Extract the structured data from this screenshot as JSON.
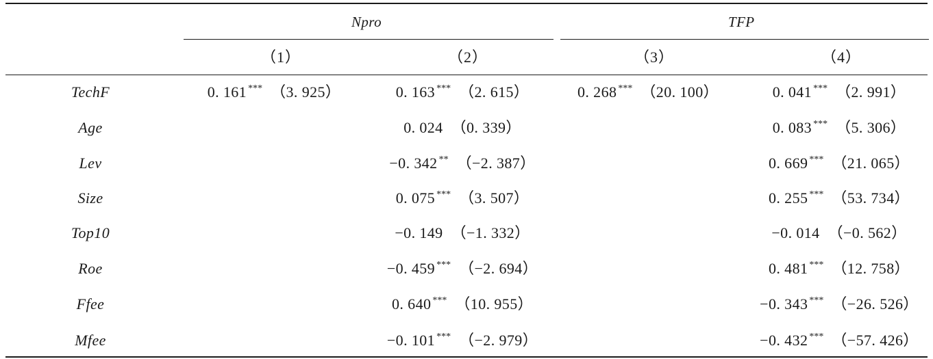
{
  "header": {
    "group_npro": "Npro",
    "group_tfp": "TFP",
    "columns": [
      "（1）",
      "（2）",
      "（3）",
      "（4）"
    ]
  },
  "rows": [
    {
      "variable": "TechF",
      "c1": {
        "coef": "0. 161",
        "stars": "***",
        "t": "（3. 925）"
      },
      "c2": {
        "coef": "0. 163",
        "stars": "***",
        "t": "（2. 615）"
      },
      "c3": {
        "coef": "0. 268",
        "stars": "***",
        "t": "（20. 100）"
      },
      "c4": {
        "coef": "0. 041",
        "stars": "***",
        "t": "（2. 991）"
      }
    },
    {
      "variable": "Age",
      "c1": {
        "coef": "",
        "stars": "",
        "t": ""
      },
      "c2": {
        "coef": "0. 024",
        "stars": "",
        "t": "（0. 339）"
      },
      "c3": {
        "coef": "",
        "stars": "",
        "t": ""
      },
      "c4": {
        "coef": "0. 083",
        "stars": "***",
        "t": "（5. 306）"
      }
    },
    {
      "variable": "Lev",
      "c1": {
        "coef": "",
        "stars": "",
        "t": ""
      },
      "c2": {
        "coef": "−0. 342",
        "stars": "**",
        "t": "（−2. 387）"
      },
      "c3": {
        "coef": "",
        "stars": "",
        "t": ""
      },
      "c4": {
        "coef": "0. 669",
        "stars": "***",
        "t": "（21. 065）"
      }
    },
    {
      "variable": "Size",
      "c1": {
        "coef": "",
        "stars": "",
        "t": ""
      },
      "c2": {
        "coef": "0. 075",
        "stars": "***",
        "t": "（3. 507）"
      },
      "c3": {
        "coef": "",
        "stars": "",
        "t": ""
      },
      "c4": {
        "coef": "0. 255",
        "stars": "***",
        "t": "（53. 734）"
      }
    },
    {
      "variable": "Top10",
      "c1": {
        "coef": "",
        "stars": "",
        "t": ""
      },
      "c2": {
        "coef": "−0. 149",
        "stars": "",
        "t": "（−1. 332）"
      },
      "c3": {
        "coef": "",
        "stars": "",
        "t": ""
      },
      "c4": {
        "coef": "−0. 014",
        "stars": "",
        "t": "（−0. 562）"
      }
    },
    {
      "variable": "Roe",
      "c1": {
        "coef": "",
        "stars": "",
        "t": ""
      },
      "c2": {
        "coef": "−0. 459",
        "stars": "***",
        "t": "（−2. 694）"
      },
      "c3": {
        "coef": "",
        "stars": "",
        "t": ""
      },
      "c4": {
        "coef": "0. 481",
        "stars": "***",
        "t": "（12. 758）"
      }
    },
    {
      "variable": "Ffee",
      "c1": {
        "coef": "",
        "stars": "",
        "t": ""
      },
      "c2": {
        "coef": "0. 640",
        "stars": "***",
        "t": "（10. 955）"
      },
      "c3": {
        "coef": "",
        "stars": "",
        "t": ""
      },
      "c4": {
        "coef": "−0. 343",
        "stars": "***",
        "t": "（−26. 526）"
      }
    },
    {
      "variable": "Mfee",
      "c1": {
        "coef": "",
        "stars": "",
        "t": ""
      },
      "c2": {
        "coef": "−0. 101",
        "stars": "***",
        "t": "（−2. 979）"
      },
      "c3": {
        "coef": "",
        "stars": "",
        "t": ""
      },
      "c4": {
        "coef": "−0. 432",
        "stars": "***",
        "t": "（−57. 426）"
      }
    }
  ]
}
